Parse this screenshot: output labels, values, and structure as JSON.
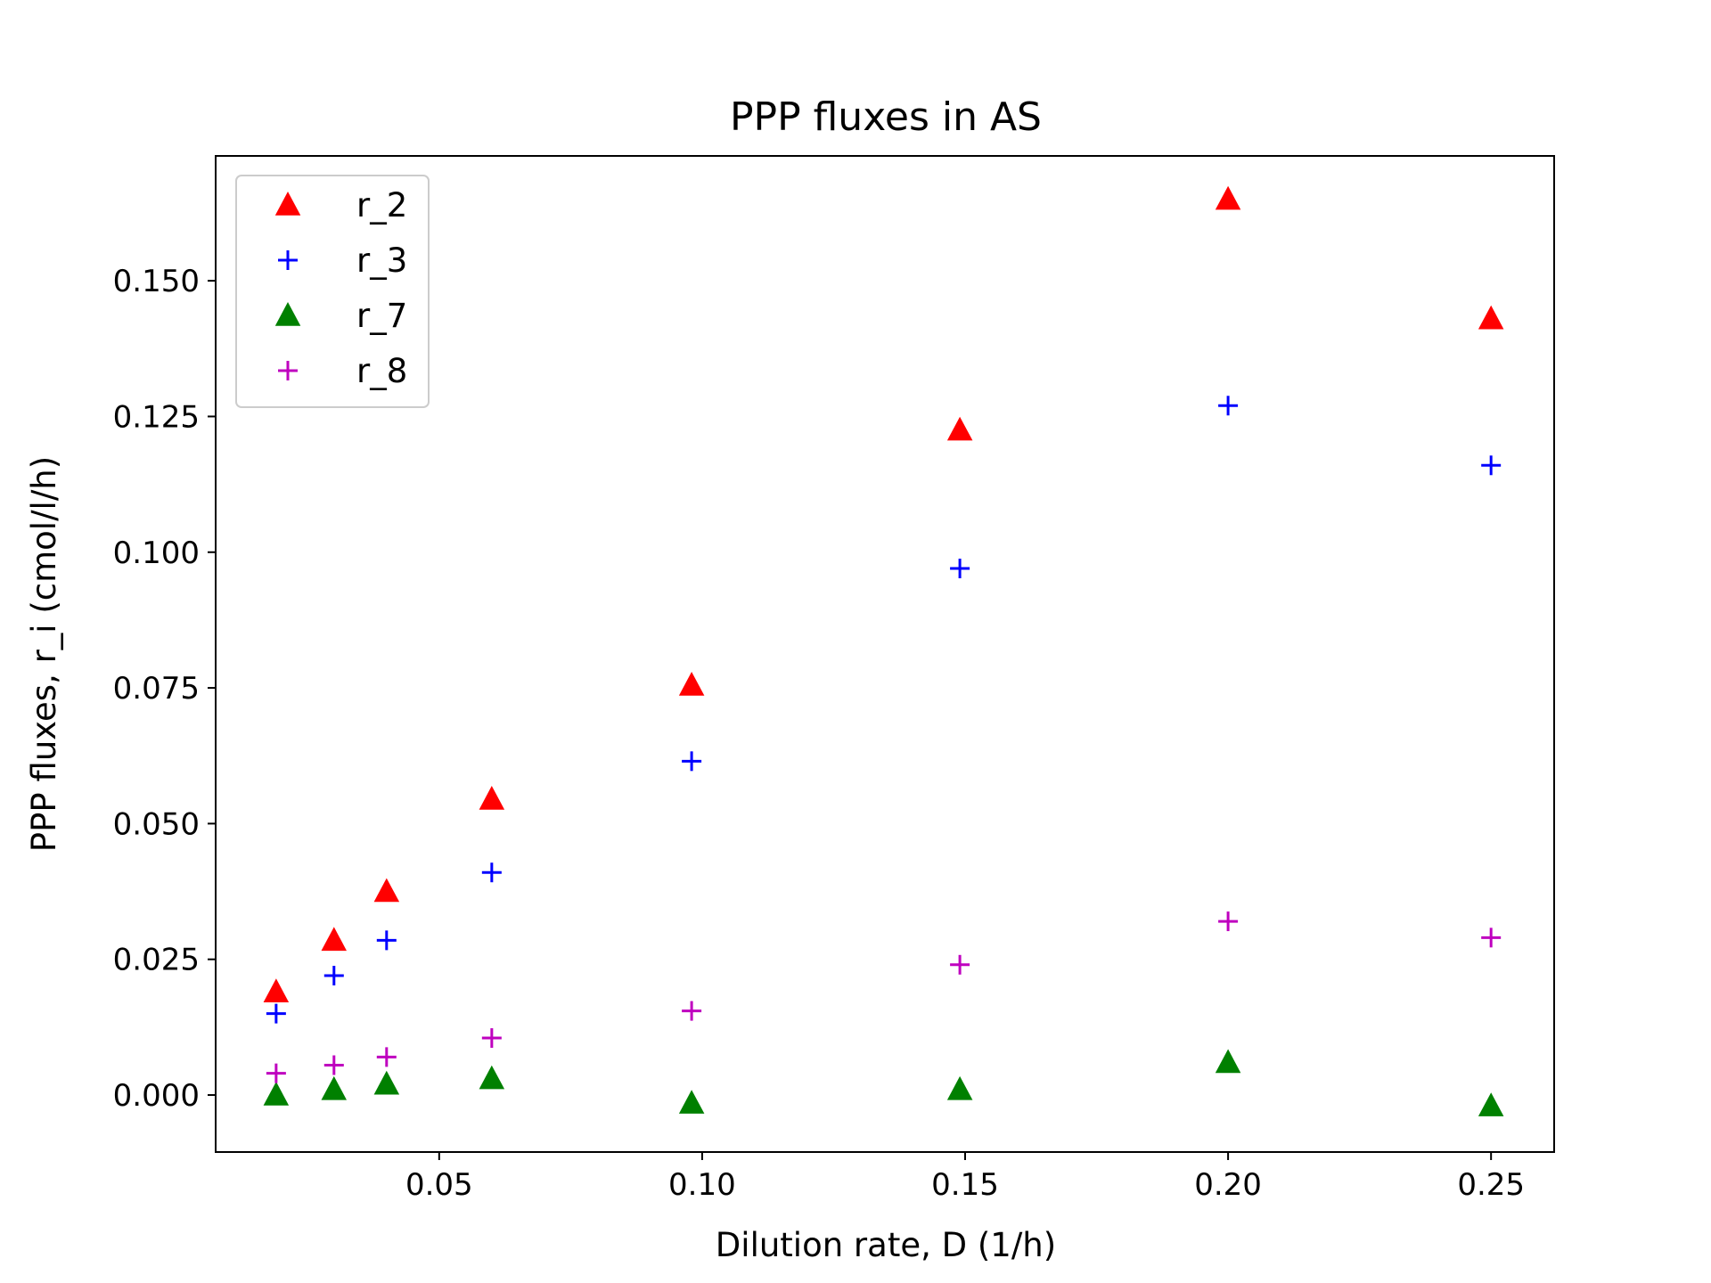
{
  "chart_data": {
    "type": "scatter",
    "title": "PPP fluxes in AS",
    "xlabel": "Dilution rate, D (1/h)",
    "ylabel": "PPP fluxes, r_i (cmol/l/h)",
    "xlim": [
      0.0075,
      0.262
    ],
    "ylim": [
      -0.0105,
      0.173
    ],
    "xticks": [
      0.05,
      0.1,
      0.15,
      0.2,
      0.25
    ],
    "xtick_labels": [
      "0.05",
      "0.10",
      "0.15",
      "0.20",
      "0.25"
    ],
    "yticks": [
      0.0,
      0.025,
      0.05,
      0.075,
      0.1,
      0.125,
      0.15
    ],
    "ytick_labels": [
      "0.000",
      "0.025",
      "0.050",
      "0.075",
      "0.100",
      "0.125",
      "0.150"
    ],
    "grid": false,
    "legend_position": "upper-left",
    "x": [
      0.019,
      0.03,
      0.04,
      0.06,
      0.098,
      0.149,
      0.2,
      0.25
    ],
    "series": [
      {
        "name": "r_2",
        "marker": "triangle",
        "color": "#ff0000",
        "values": [
          0.019,
          0.0285,
          0.0375,
          0.0545,
          0.0755,
          0.1225,
          0.165,
          0.143
        ]
      },
      {
        "name": "r_3",
        "marker": "plus",
        "color": "#0000ff",
        "values": [
          0.015,
          0.022,
          0.0285,
          0.041,
          0.0615,
          0.097,
          0.127,
          0.116
        ]
      },
      {
        "name": "r_7",
        "marker": "triangle",
        "color": "#008000",
        "values": [
          0.0,
          0.001,
          0.002,
          0.003,
          -0.0015,
          0.001,
          0.006,
          -0.002
        ]
      },
      {
        "name": "r_8",
        "marker": "plus",
        "color": "#bf00bf",
        "values": [
          0.004,
          0.0055,
          0.007,
          0.0105,
          0.0155,
          0.024,
          0.032,
          0.029
        ]
      }
    ]
  }
}
